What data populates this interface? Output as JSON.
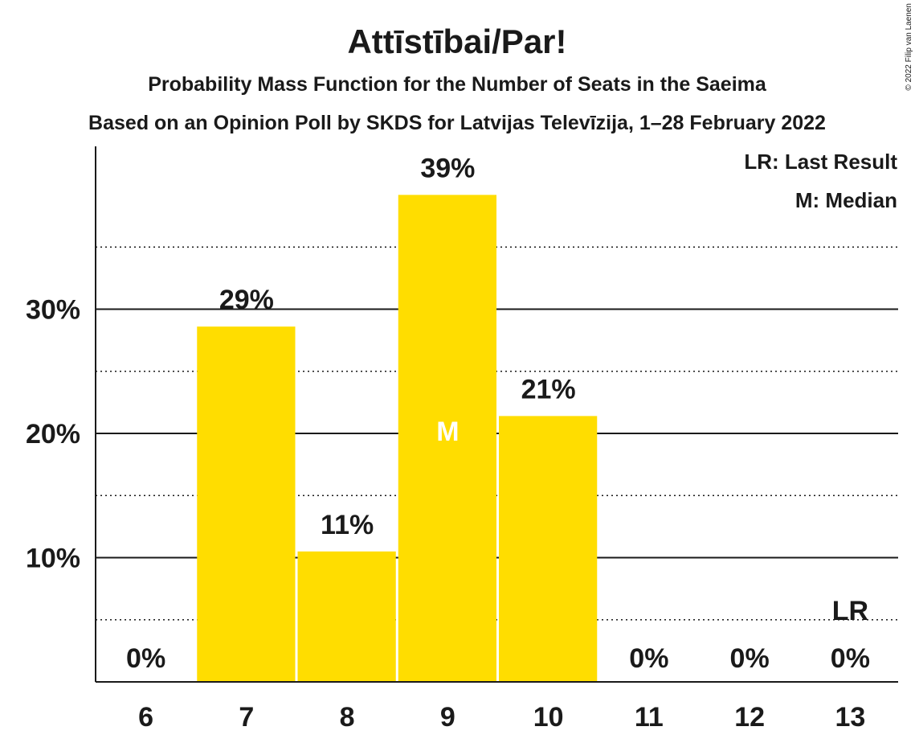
{
  "chart_data": {
    "type": "bar",
    "title": "Attīstībai/Par!",
    "subtitle": "Probability Mass Function for the Number of Seats in the Saeima",
    "subtitle2": "Based on an Opinion Poll by SKDS for Latvijas Televīzija, 1–28 February 2022",
    "copyright": "© 2022 Filip van Laenen",
    "categories": [
      "6",
      "7",
      "8",
      "9",
      "10",
      "11",
      "12",
      "13"
    ],
    "values": [
      0,
      28.6,
      10.5,
      39.2,
      21.4,
      0,
      0,
      0
    ],
    "value_labels": [
      "0%",
      "29%",
      "11%",
      "39%",
      "21%",
      "0%",
      "0%",
      "0%"
    ],
    "y_ticks": [
      10,
      20,
      30
    ],
    "y_tick_labels": [
      "10%",
      "20%",
      "30%"
    ],
    "y_minor_ticks": [
      5,
      15,
      25,
      35
    ],
    "ylim": [
      0,
      43
    ],
    "median_index": 3,
    "median_label": "M",
    "last_result_index": 7,
    "last_result_label": "LR",
    "legend": [
      "LR: Last Result",
      "M: Median"
    ],
    "legend_position": "top-right",
    "bar_color": "#FFDD00",
    "text_color": "#1a1a1a"
  }
}
